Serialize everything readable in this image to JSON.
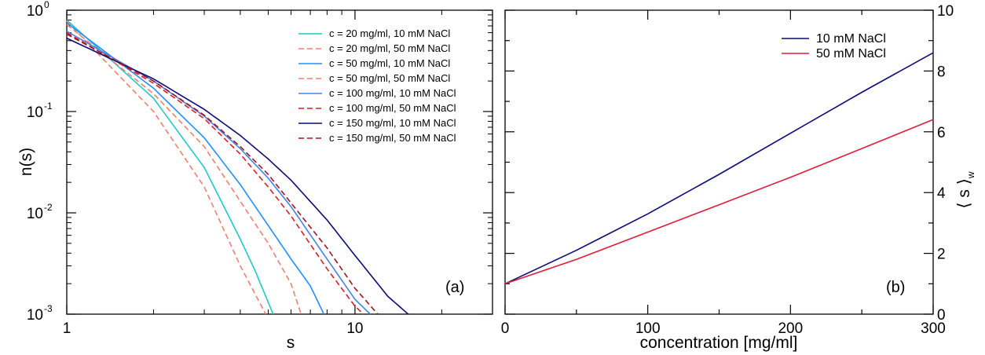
{
  "chart_data": [
    {
      "type": "line",
      "panel": "(a)",
      "xlabel": "s",
      "ylabel": "n(s)",
      "xscale": "log",
      "yscale": "log",
      "xlim": [
        1,
        30
      ],
      "ylim": [
        0.001,
        1
      ],
      "x_ticks": [
        {
          "value": 1,
          "label": "1"
        },
        {
          "value": 10,
          "label": "10"
        }
      ],
      "y_ticks": [
        {
          "value": 1,
          "base": "10",
          "exp": "0"
        },
        {
          "value": 0.1,
          "base": "10",
          "exp": "-1"
        },
        {
          "value": 0.01,
          "base": "10",
          "exp": "-2"
        },
        {
          "value": 0.001,
          "base": "10",
          "exp": "-3"
        }
      ],
      "grid": false,
      "legend_position": "top-right",
      "series": [
        {
          "name": "c = 20 mg/ml, 10 mM NaCl",
          "color": "#20c8c8",
          "dash": "solid",
          "points": [
            [
              1,
              0.8
            ],
            [
              2,
              0.135
            ],
            [
              3,
              0.028
            ],
            [
              4,
              0.0055
            ],
            [
              4.5,
              0.0027
            ],
            [
              5.2,
              0.001
            ]
          ]
        },
        {
          "name": "c = 20 mg/ml, 50 mM NaCl",
          "color": "#f08070",
          "dash": "dashed",
          "points": [
            [
              1,
              0.78
            ],
            [
              2,
              0.1
            ],
            [
              3,
              0.018
            ],
            [
              4,
              0.003
            ],
            [
              4.9,
              0.001
            ]
          ]
        },
        {
          "name": "c = 50 mg/ml, 10 mM NaCl",
          "color": "#1e90ff",
          "dash": "solid",
          "points": [
            [
              1,
              0.75
            ],
            [
              2,
              0.17
            ],
            [
              3,
              0.055
            ],
            [
              4,
              0.019
            ],
            [
              5,
              0.0075
            ],
            [
              6,
              0.0035
            ],
            [
              7,
              0.0019
            ],
            [
              7.8,
              0.001
            ]
          ]
        },
        {
          "name": "c = 50 mg/ml, 50 mM NaCl",
          "color": "#f08070",
          "dash": "dashed",
          "points": [
            [
              1,
              0.72
            ],
            [
              2,
              0.15
            ],
            [
              3,
              0.045
            ],
            [
              4,
              0.013
            ],
            [
              5,
              0.005
            ],
            [
              6,
              0.002
            ],
            [
              6.5,
              0.001
            ]
          ]
        },
        {
          "name": "c = 100 mg/ml, 10 mM NaCl",
          "color": "#4682e6",
          "dash": "solid",
          "points": [
            [
              1,
              0.62
            ],
            [
              2,
              0.2
            ],
            [
              3,
              0.09
            ],
            [
              4,
              0.043
            ],
            [
              5,
              0.022
            ],
            [
              6,
              0.0115
            ],
            [
              8,
              0.0035
            ],
            [
              10,
              0.0014
            ],
            [
              11.3,
              0.001
            ]
          ]
        },
        {
          "name": "c = 100 mg/ml, 50 mM NaCl",
          "color": "#dc1e28",
          "dash": "dashed",
          "points": [
            [
              1,
              0.6
            ],
            [
              2,
              0.19
            ],
            [
              3,
              0.085
            ],
            [
              4,
              0.038
            ],
            [
              5,
              0.018
            ],
            [
              6,
              0.0093
            ],
            [
              8,
              0.0028
            ],
            [
              10,
              0.0012
            ],
            [
              10.7,
              0.001
            ]
          ]
        },
        {
          "name": "c = 150 mg/ml, 10 mM NaCl",
          "color": "#0a0a78",
          "dash": "solid",
          "points": [
            [
              1,
              0.53
            ],
            [
              2,
              0.21
            ],
            [
              3,
              0.105
            ],
            [
              4,
              0.058
            ],
            [
              5,
              0.034
            ],
            [
              6,
              0.021
            ],
            [
              8,
              0.0085
            ],
            [
              10,
              0.0038
            ],
            [
              13,
              0.0015
            ],
            [
              15.3,
              0.001
            ]
          ]
        },
        {
          "name": "c = 150 mg/ml, 50 mM NaCl",
          "color": "#a0141e",
          "dash": "dashed",
          "points": [
            [
              1,
              0.58
            ],
            [
              2,
              0.2
            ],
            [
              3,
              0.092
            ],
            [
              4,
              0.045
            ],
            [
              5,
              0.024
            ],
            [
              6,
              0.0125
            ],
            [
              8,
              0.0045
            ],
            [
              10,
              0.0018
            ],
            [
              12,
              0.001
            ]
          ]
        }
      ]
    },
    {
      "type": "line",
      "panel": "(b)",
      "xlabel": "concentration [mg/ml]",
      "ylabel": "⟨ s ⟩",
      "ylabel_sub": "w",
      "xlim": [
        0,
        300
      ],
      "ylim": [
        0,
        10
      ],
      "x_ticks": [
        0,
        100,
        200,
        300
      ],
      "y_ticks": [
        0,
        2,
        4,
        6,
        8,
        10
      ],
      "y_axis_side": "right",
      "grid": false,
      "legend_position": "top-right",
      "series": [
        {
          "name": "10 mM NaCl",
          "color": "#0a0a78",
          "dash": "solid",
          "points": [
            [
              0,
              1.0
            ],
            [
              50,
              2.1
            ],
            [
              100,
              3.3
            ],
            [
              150,
              4.6
            ],
            [
              200,
              5.95
            ],
            [
              250,
              7.3
            ],
            [
              300,
              8.6
            ]
          ]
        },
        {
          "name": "50 mM NaCl",
          "color": "#dc1e3c",
          "dash": "solid",
          "points": [
            [
              0,
              1.0
            ],
            [
              50,
              1.8
            ],
            [
              100,
              2.7
            ],
            [
              150,
              3.6
            ],
            [
              200,
              4.5
            ],
            [
              250,
              5.45
            ],
            [
              300,
              6.4
            ]
          ]
        }
      ]
    }
  ]
}
